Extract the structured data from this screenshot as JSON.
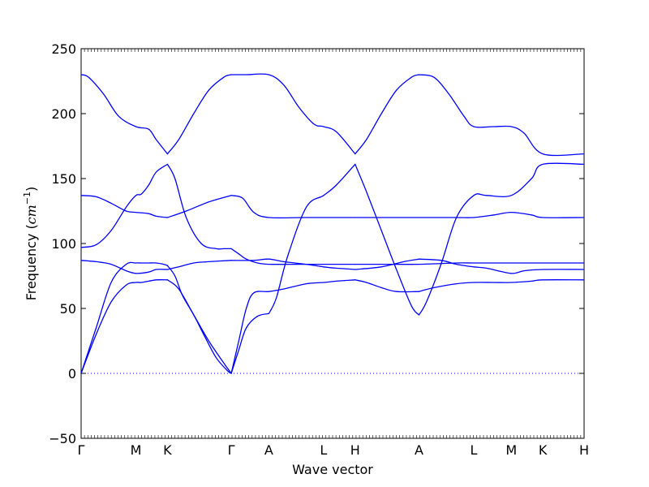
{
  "chart_data": {
    "type": "line",
    "title": "",
    "xlabel": "Wave vector",
    "ylabel": "Frequency (",
    "ylabel_unit": "cm",
    "ylabel_unit_exponent": "−1",
    "ylabel_close": ")",
    "ylim": [
      -50,
      250
    ],
    "yticks": [
      -50,
      0,
      50,
      100,
      150,
      200,
      250
    ],
    "ytick_labels": [
      "−50",
      "0",
      "50",
      "100",
      "150",
      "200",
      "250"
    ],
    "xlim": [
      0,
      6.7
    ],
    "high_symmetry_points": [
      {
        "label": "Γ",
        "x": 0.0
      },
      {
        "label": "M",
        "x": 0.73
      },
      {
        "label": "K",
        "x": 1.15
      },
      {
        "label": "Γ",
        "x": 2.0
      },
      {
        "label": "A",
        "x": 2.5
      },
      {
        "label": "L",
        "x": 3.23
      },
      {
        "label": "H",
        "x": 3.65
      },
      {
        "label": "A",
        "x": 4.5
      },
      {
        "label": "L",
        "x": 5.23
      },
      {
        "label": "M",
        "x": 5.73
      },
      {
        "label": "K",
        "x": 6.15
      },
      {
        "label": "H",
        "x": 6.7
      }
    ],
    "zero_line": {
      "y": 0,
      "style": "dotted"
    },
    "grid": false,
    "series_color": "#0000ff",
    "series": [
      {
        "x": [
          0,
          0.2,
          0.4,
          0.6,
          0.73,
          0.8,
          0.9,
          1.0,
          1.1,
          1.15
        ],
        "y": [
          0,
          35,
          70,
          84,
          85,
          85,
          85,
          85,
          84,
          83
        ]
      },
      {
        "x": [
          1.15,
          1.25,
          1.35,
          1.5,
          1.65,
          1.8,
          1.95,
          2.0
        ],
        "y": [
          83,
          75,
          60,
          45,
          28,
          12,
          2,
          0
        ]
      },
      {
        "x": [
          2.0,
          2.1,
          2.2,
          2.35,
          2.5
        ],
        "y": [
          0,
          18,
          35,
          44,
          46
        ]
      },
      {
        "x": [
          2.5,
          2.6,
          2.75,
          3.0,
          3.23,
          3.4,
          3.65
        ],
        "y": [
          46,
          58,
          90,
          128,
          137,
          145,
          161
        ]
      },
      {
        "x": [
          0,
          0.2,
          0.4,
          0.6,
          0.73,
          0.8,
          0.9,
          1.0,
          1.15
        ],
        "y": [
          97,
          99,
          110,
          128,
          137,
          138,
          145,
          155,
          161
        ]
      },
      {
        "x": [
          1.15,
          1.25,
          1.4,
          1.6,
          1.8,
          1.9,
          2.0
        ],
        "y": [
          161,
          150,
          120,
          100,
          96,
          96,
          96
        ]
      },
      {
        "x": [
          2.0,
          2.1,
          2.2,
          2.35,
          2.5,
          2.8,
          3.2,
          3.65
        ],
        "y": [
          96,
          92,
          88,
          85,
          84,
          84,
          84,
          84
        ]
      },
      {
        "x": [
          0,
          0.2,
          0.4,
          0.6,
          0.73,
          0.8,
          0.9,
          1.0,
          1.15
        ],
        "y": [
          0,
          30,
          55,
          68,
          70,
          70,
          71,
          72,
          72
        ]
      },
      {
        "x": [
          1.15,
          1.3,
          1.5,
          1.7,
          1.9,
          2.0
        ],
        "y": [
          72,
          65,
          45,
          25,
          8,
          0
        ]
      },
      {
        "x": [
          2.0,
          2.1,
          2.2,
          2.3,
          2.5,
          2.7,
          3.0,
          3.23,
          3.4,
          3.65
        ],
        "y": [
          0,
          25,
          50,
          62,
          63,
          65,
          69,
          70,
          71,
          72
        ]
      },
      {
        "x": [
          0,
          0.2,
          0.4,
          0.6,
          0.73,
          0.9,
          1.0,
          1.15
        ],
        "y": [
          87,
          86,
          84,
          79,
          77,
          78,
          80,
          80
        ]
      },
      {
        "x": [
          1.15,
          1.3,
          1.5,
          1.7,
          2.0
        ],
        "y": [
          80,
          82,
          85,
          86,
          87
        ]
      },
      {
        "x": [
          2.0,
          2.3,
          2.5,
          2.7,
          3.0,
          3.23,
          3.4,
          3.65
        ],
        "y": [
          87,
          87,
          88,
          86,
          84,
          82,
          81,
          80
        ]
      },
      {
        "x": [
          0,
          0.2,
          0.4,
          0.6,
          0.73,
          0.9,
          1.0,
          1.15
        ],
        "y": [
          137,
          136,
          131,
          125,
          124,
          123,
          121,
          120
        ]
      },
      {
        "x": [
          1.15,
          1.4,
          1.7,
          2.0
        ],
        "y": [
          120,
          125,
          132,
          137
        ]
      },
      {
        "x": [
          2.0,
          2.15,
          2.3,
          2.5,
          3.0,
          3.65
        ],
        "y": [
          137,
          135,
          124,
          120,
          120,
          120
        ]
      },
      {
        "x": [
          0,
          0.1,
          0.3,
          0.5,
          0.73,
          0.9,
          1.0,
          1.15
        ],
        "y": [
          230,
          228,
          215,
          198,
          190,
          188,
          180,
          169
        ]
      },
      {
        "x": [
          1.15,
          1.3,
          1.5,
          1.7,
          1.9,
          2.0
        ],
        "y": [
          169,
          180,
          200,
          218,
          228,
          230
        ]
      },
      {
        "x": [
          2.0,
          2.2,
          2.5,
          2.7,
          2.9,
          3.1,
          3.23,
          3.4,
          3.65
        ],
        "y": [
          230,
          230,
          230,
          222,
          205,
          192,
          190,
          186,
          169
        ]
      },
      {
        "x": [
          3.65,
          3.8,
          4.0,
          4.2,
          4.4,
          4.5
        ],
        "y": [
          161,
          140,
          110,
          80,
          52,
          45
        ]
      },
      {
        "x": [
          4.5,
          4.6,
          4.8,
          5.0,
          5.23,
          5.4,
          5.73,
          6.0,
          6.15,
          6.7
        ],
        "y": [
          45,
          55,
          85,
          120,
          137,
          137,
          137,
          150,
          161,
          161
        ]
      },
      {
        "x": [
          3.65,
          3.8,
          4.0,
          4.2,
          4.5
        ],
        "y": [
          72,
          70,
          66,
          63,
          63
        ]
      },
      {
        "x": [
          4.5,
          4.7,
          5.0,
          5.23,
          5.5,
          5.73,
          6.0,
          6.15,
          6.7
        ],
        "y": [
          63,
          66,
          69,
          70,
          70,
          70,
          71,
          72,
          72
        ]
      },
      {
        "x": [
          3.65,
          4.0,
          4.3,
          4.5
        ],
        "y": [
          80,
          82,
          86,
          88
        ]
      },
      {
        "x": [
          4.5,
          4.8,
          5.0,
          5.23,
          5.4,
          5.73,
          5.9,
          6.15,
          6.7
        ],
        "y": [
          88,
          87,
          84,
          82,
          81,
          77,
          79,
          80,
          80
        ]
      },
      {
        "x": [
          3.65,
          4.0,
          4.5,
          5.0,
          5.23,
          5.73,
          6.15,
          6.7
        ],
        "y": [
          84,
          84,
          84,
          85,
          85,
          85,
          85,
          85
        ]
      },
      {
        "x": [
          3.65,
          4.0,
          4.5,
          5.0,
          5.23,
          5.5,
          5.73,
          6.0,
          6.15,
          6.7
        ],
        "y": [
          120,
          120,
          120,
          120,
          120,
          122,
          124,
          122,
          120,
          120
        ]
      },
      {
        "x": [
          3.65,
          3.8,
          4.0,
          4.2,
          4.4,
          4.5
        ],
        "y": [
          169,
          180,
          200,
          218,
          228,
          230
        ]
      },
      {
        "x": [
          4.5,
          4.7,
          4.9,
          5.1,
          5.23,
          5.5,
          5.73,
          5.9,
          6.15,
          6.7
        ],
        "y": [
          230,
          228,
          215,
          198,
          190,
          190,
          190,
          185,
          169,
          169
        ]
      }
    ]
  }
}
